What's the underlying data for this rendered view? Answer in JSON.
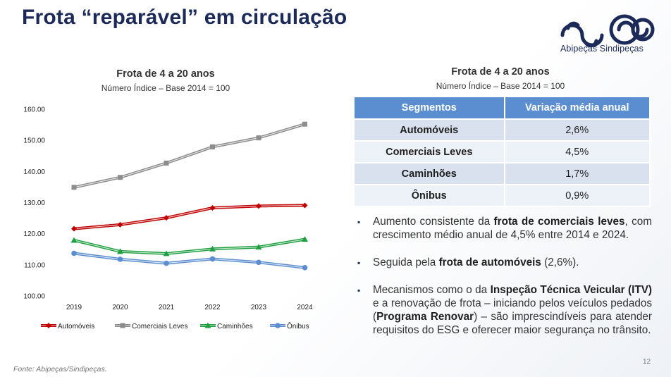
{
  "header": {
    "title": "Frota “reparável” em circulação"
  },
  "logo": {
    "text": "Abipeças Sindipeças"
  },
  "chart_data": {
    "type": "line",
    "title": "Frota de 4 a 20 anos",
    "subtitle": "Número Índice – Base 2014 = 100",
    "categories": [
      "2019",
      "2020",
      "2021",
      "2022",
      "2023",
      "2024"
    ],
    "ylim": [
      100,
      160
    ],
    "yticks": [
      "100.00",
      "110.00",
      "120.00",
      "130.00",
      "140.00",
      "150.00",
      "160.00"
    ],
    "legend_position": "bottom",
    "series": [
      {
        "name": "Automóveis",
        "values": [
          121.6,
          122.9,
          125.1,
          128.3,
          128.9,
          129.1
        ],
        "color": "#c00000",
        "marker": "diamond"
      },
      {
        "name": "Comerciais Leves",
        "values": [
          134.9,
          138.1,
          142.7,
          147.9,
          150.8,
          155.2
        ],
        "color": "#8c8c8c",
        "marker": "square"
      },
      {
        "name": "Caminhões",
        "values": [
          117.9,
          114.3,
          113.6,
          115.1,
          115.7,
          118.2
        ],
        "color": "#1fa040",
        "marker": "triangle"
      },
      {
        "name": "Ônibus",
        "values": [
          113.7,
          111.8,
          110.5,
          111.9,
          110.8,
          109.1
        ],
        "color": "#5b8ed1",
        "marker": "circle"
      }
    ]
  },
  "table": {
    "title": "Frota de 4 a 20 anos",
    "subtitle": "Número Índice – Base 2014 = 100",
    "headers": [
      "Segmentos",
      "Variação média anual"
    ],
    "rows": [
      {
        "segment": "Automóveis",
        "value": "2,6%"
      },
      {
        "segment": "Comerciais Leves",
        "value": "4,5%"
      },
      {
        "segment": "Caminhões",
        "value": "1,7%"
      },
      {
        "segment": "Ônibus",
        "value": "0,9%"
      }
    ]
  },
  "bullets": [
    {
      "marker": "▪",
      "p1": "Aumento consistente da ",
      "b1": "frota de comerciais leves",
      "p2": ", com crescimento médio anual de 4,5% entre 2014 e 2024.",
      "b2": "",
      "p3": ""
    },
    {
      "marker": "▪",
      "p1": "Seguida pela ",
      "b1": "frota de automóveis",
      "p2": " (2,6%).",
      "b2": "",
      "p3": ""
    },
    {
      "marker": "▪",
      "p1": "Mecanismos como o da ",
      "b1": "Inspeção Técnica Veicular (ITV)",
      "p2": " e a renovação de frota – iniciando pelos veículos pedados (",
      "b2": "Programa Renovar",
      "p3": ") – são imprescindíveis para atender requisitos do ESG e oferecer maior segurança no trânsito."
    }
  ],
  "footer": {
    "source": "Fonte: Abipeças/Sindipeças.",
    "page": "12"
  }
}
